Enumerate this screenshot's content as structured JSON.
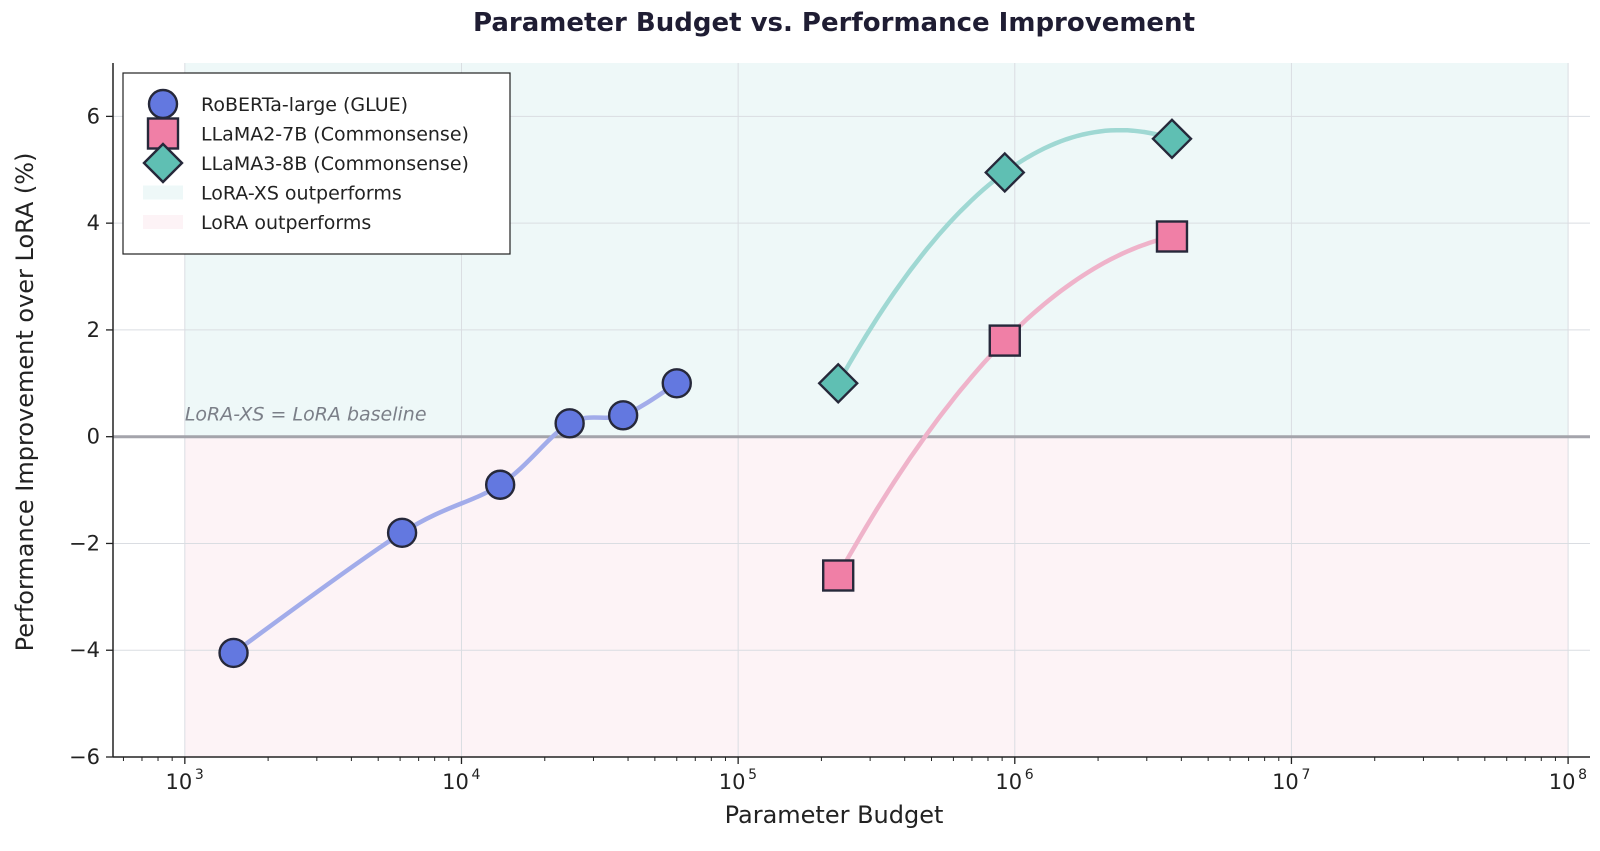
{
  "chart_data": {
    "type": "scatter",
    "title": "Parameter Budget vs. Performance Improvement",
    "xlabel": "Parameter Budget",
    "ylabel": "Performance Improvement over LoRA (%)",
    "x_scale": "log",
    "xlim": [
      550,
      120000000
    ],
    "ylim": [
      -6,
      7
    ],
    "x_ticks": [
      1000,
      10000,
      100000,
      1000000,
      10000000,
      100000000
    ],
    "x_tick_labels": [
      "10",
      "10",
      "10",
      "10",
      "10",
      "10"
    ],
    "x_tick_exponents": [
      "3",
      "4",
      "5",
      "6",
      "7",
      "8"
    ],
    "y_ticks": [
      -6,
      -4,
      -2,
      0,
      2,
      4,
      6
    ],
    "y_tick_labels": [
      "−6",
      "−4",
      "−2",
      "0",
      "2",
      "4",
      "6"
    ],
    "grid": true,
    "legend_position": "top-left",
    "shaded_regions": [
      {
        "label": "LoRA-XS outperforms",
        "y_from": 0,
        "y_to": 7,
        "x_from": 1000,
        "x_to": 100000000,
        "color": "#eef8f8"
      },
      {
        "label": "LoRA outperforms",
        "y_from": -6,
        "y_to": 0,
        "x_from": 1000,
        "x_to": 100000000,
        "color": "#fdf3f6"
      }
    ],
    "baseline": {
      "y": 0,
      "label": "LoRA-XS = LoRA baseline"
    },
    "series": [
      {
        "name": "RoBERTa-large (GLUE)",
        "marker": "circle",
        "color": "#6378e0",
        "line_color": "#a2acea",
        "x": [
          1500,
          6100,
          13800,
          24600,
          38400,
          60000
        ],
        "y": [
          -4.05,
          -1.8,
          -0.9,
          0.25,
          0.4,
          1.0
        ]
      },
      {
        "name": "LLaMA2-7B (Commonsense)",
        "marker": "square",
        "color": "#f07fa6",
        "line_color": "#efb3ca",
        "x": [
          230000,
          920000,
          3700000
        ],
        "y": [
          -2.6,
          1.8,
          3.75
        ]
      },
      {
        "name": "LLaMA3-8B (Commonsense)",
        "marker": "diamond",
        "color": "#5fbfb3",
        "line_color": "#9fd8d3",
        "x": [
          230000,
          920000,
          3700000
        ],
        "y": [
          1.0,
          4.95,
          5.58
        ]
      }
    ]
  }
}
